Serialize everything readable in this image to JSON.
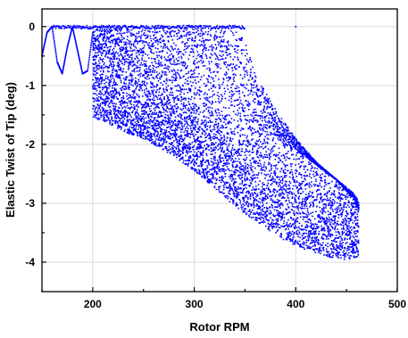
{
  "chart_data": {
    "type": "scatter",
    "title": "",
    "xlabel": "Rotor RPM",
    "ylabel": "Elastic Twist of Tip (deg)",
    "xlim": [
      150,
      500
    ],
    "ylim": [
      -4.5,
      0.3
    ],
    "x_ticks": [
      200,
      300,
      400,
      500
    ],
    "y_ticks": [
      0,
      -1,
      -2,
      -3,
      -4
    ],
    "grid": true,
    "legend": "none",
    "color": "#0000ff",
    "series": [
      {
        "name": "",
        "marker": "dot",
        "start_transient": {
          "x": [
            150,
            155,
            160,
            165,
            170,
            175,
            180,
            185,
            190,
            195,
            200
          ],
          "y": [
            -0.5,
            -0.1,
            0.0,
            -0.6,
            -0.8,
            -0.35,
            0.0,
            -0.4,
            -0.8,
            -0.75,
            -0.1
          ]
        },
        "band_upper": {
          "x": [
            200,
            210,
            220,
            240,
            260,
            280,
            300,
            320,
            340,
            350,
            360,
            380,
            400,
            420,
            440,
            455,
            462
          ],
          "y": [
            -0.05,
            -0.05,
            -0.05,
            -0.05,
            -0.05,
            -0.05,
            -0.05,
            -0.05,
            -0.05,
            -0.25,
            -0.8,
            -1.4,
            -1.9,
            -2.3,
            -2.6,
            -2.9,
            -3.1
          ]
        },
        "band_lower": {
          "x": [
            200,
            220,
            240,
            260,
            280,
            300,
            320,
            340,
            360,
            380,
            400,
            420,
            440,
            455,
            462
          ],
          "y": [
            -1.55,
            -1.7,
            -1.85,
            -2.0,
            -2.2,
            -2.45,
            -2.75,
            -3.05,
            -3.3,
            -3.55,
            -3.75,
            -3.85,
            -3.95,
            -3.95,
            -3.9
          ]
        },
        "dense_upper": {
          "x": [
            200,
            220,
            240,
            260,
            280,
            300,
            320,
            340,
            360,
            380,
            400,
            420,
            440,
            455,
            462
          ],
          "y": [
            -0.4,
            -0.6,
            -0.75,
            -0.9,
            -1.05,
            -1.2,
            -1.35,
            -1.5,
            -1.7,
            -1.9,
            -2.1,
            -2.35,
            -2.6,
            -2.8,
            -2.95
          ]
        },
        "outliers": [
          {
            "x": 400,
            "y": 0.0
          },
          {
            "x": 228,
            "y": -0.05
          }
        ]
      }
    ]
  }
}
